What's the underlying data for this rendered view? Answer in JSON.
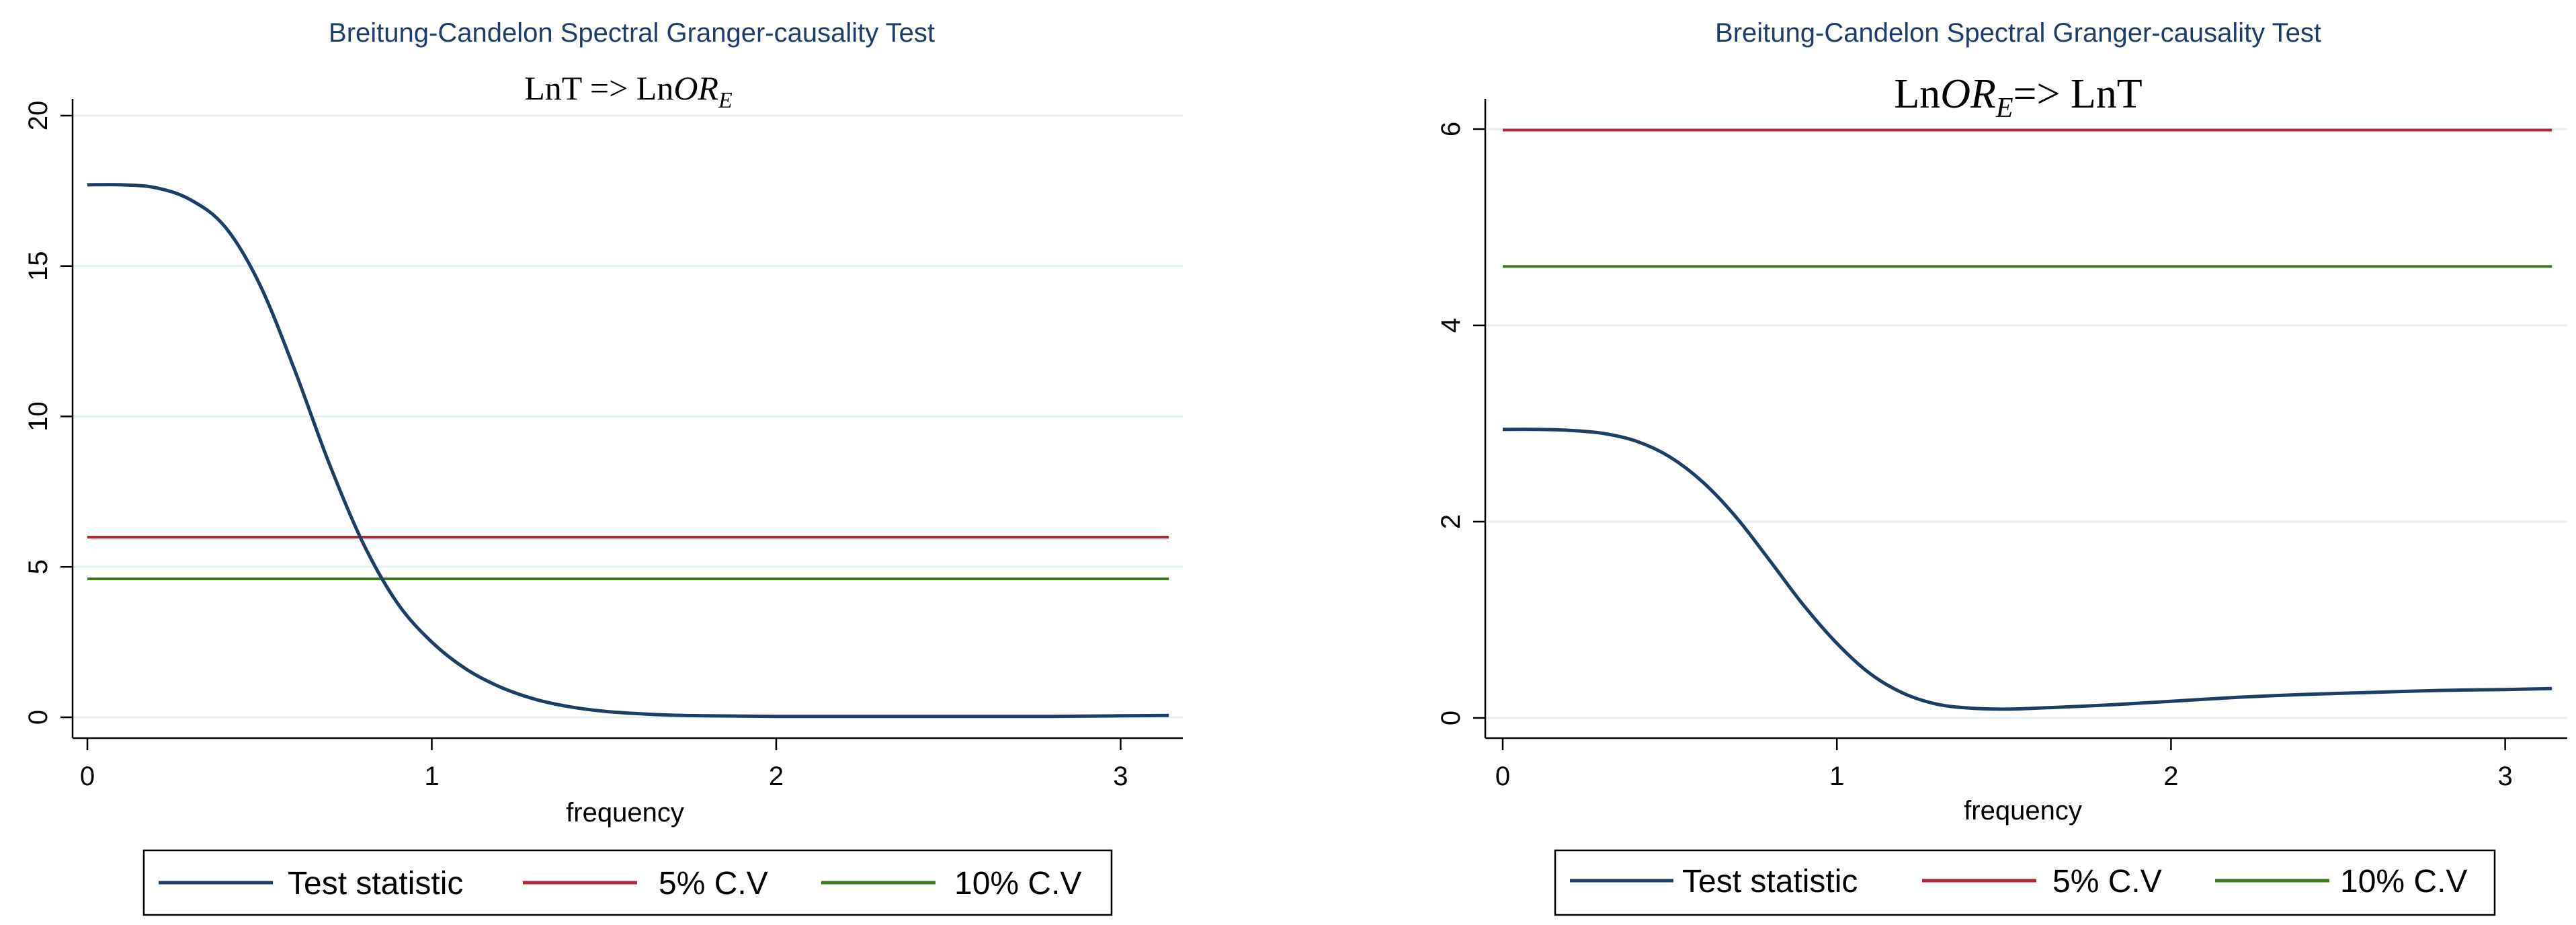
{
  "colors": {
    "test_statistic": "#1d3f66",
    "cv5": "#b0293a",
    "cv10": "#3f7a1f",
    "grid": "#e4eff0",
    "title": "#1f3c6e"
  },
  "legend": {
    "test_statistic": "Test statistic",
    "cv5": "5% C.V",
    "cv10": "10% C.V"
  },
  "chart_data": [
    {
      "type": "line",
      "title": "Breitung-Candelon Spectral Granger-causality Test",
      "subtitle": {
        "main": "LnT => Ln",
        "var": "OR",
        "sub": "E"
      },
      "xlabel": "frequency",
      "ylabel": "",
      "xlim": [
        0,
        3.1416
      ],
      "ylim": [
        0,
        20
      ],
      "xticks": [
        "0",
        "1",
        "2",
        "3"
      ],
      "yticks": [
        "0",
        "5",
        "10",
        "15",
        "20"
      ],
      "grid": true,
      "legend_position": "bottom",
      "series": [
        {
          "name": "Test statistic",
          "x": [
            0,
            0.1,
            0.2,
            0.3,
            0.4,
            0.5,
            0.6,
            0.7,
            0.8,
            0.9,
            1.0,
            1.1,
            1.2,
            1.3,
            1.4,
            1.5,
            1.6,
            1.7,
            1.8,
            1.9,
            2.0,
            2.2,
            2.4,
            2.6,
            2.8,
            3.0,
            3.14
          ],
          "values": [
            17.7,
            17.7,
            17.6,
            17.2,
            16.3,
            14.4,
            11.6,
            8.5,
            5.8,
            3.8,
            2.5,
            1.6,
            1.0,
            0.6,
            0.35,
            0.2,
            0.12,
            0.07,
            0.05,
            0.04,
            0.03,
            0.03,
            0.03,
            0.03,
            0.03,
            0.05,
            0.06
          ]
        },
        {
          "name": "5% C.V",
          "x": [
            0,
            3.14
          ],
          "values": [
            5.99,
            5.99
          ]
        },
        {
          "name": "10% C.V",
          "x": [
            0,
            3.14
          ],
          "values": [
            4.6,
            4.6
          ]
        }
      ]
    },
    {
      "type": "line",
      "title": "Breitung-Candelon Spectral Granger-causality Test",
      "subtitle": {
        "pre": "Ln",
        "var": "OR",
        "sub": "E",
        "post": "=> LnT"
      },
      "xlabel": "frequency",
      "ylabel": "",
      "xlim": [
        0,
        3.1416
      ],
      "ylim": [
        0,
        6
      ],
      "xticks": [
        "0",
        "1",
        "2",
        "3"
      ],
      "yticks": [
        "0",
        "2",
        "4",
        "6"
      ],
      "grid": true,
      "legend_position": "bottom",
      "series": [
        {
          "name": "Test statistic",
          "x": [
            0,
            0.1,
            0.2,
            0.3,
            0.4,
            0.5,
            0.6,
            0.7,
            0.8,
            0.9,
            1.0,
            1.1,
            1.2,
            1.3,
            1.4,
            1.5,
            1.6,
            1.8,
            2.0,
            2.2,
            2.4,
            2.6,
            2.8,
            3.0,
            3.14
          ],
          "values": [
            2.94,
            2.94,
            2.93,
            2.9,
            2.82,
            2.66,
            2.4,
            2.04,
            1.6,
            1.15,
            0.76,
            0.45,
            0.25,
            0.14,
            0.1,
            0.09,
            0.1,
            0.13,
            0.17,
            0.21,
            0.24,
            0.26,
            0.28,
            0.29,
            0.3
          ]
        },
        {
          "name": "5% C.V",
          "x": [
            0,
            3.14
          ],
          "values": [
            5.99,
            5.99
          ]
        },
        {
          "name": "10% C.V",
          "x": [
            0,
            3.14
          ],
          "values": [
            4.6,
            4.6
          ]
        }
      ]
    }
  ]
}
